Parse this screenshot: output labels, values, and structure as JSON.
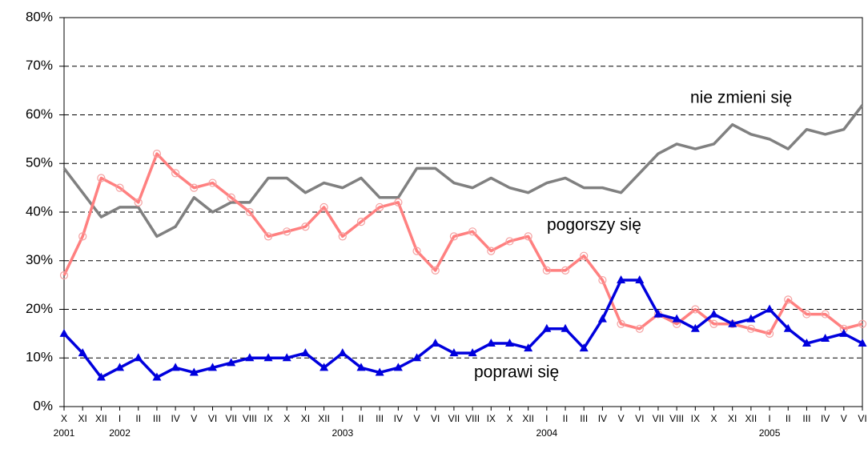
{
  "chart_data": {
    "type": "line",
    "categories": [
      "X",
      "XI",
      "XII",
      "I",
      "II",
      "III",
      "IV",
      "V",
      "VI",
      "VII",
      "VIII",
      "IX",
      "X",
      "XI",
      "XII",
      "I",
      "II",
      "III",
      "IV",
      "V",
      "VI",
      "VII",
      "VIII",
      "IX",
      "X",
      "XII",
      "I",
      "II",
      "III",
      "IV",
      "V",
      "VI",
      "VII",
      "VIII",
      "IX",
      "X",
      "XI",
      "XII",
      "I",
      "II",
      "III",
      "IV",
      "V",
      "VI"
    ],
    "year_labels": [
      "2001",
      null,
      null,
      "2002",
      null,
      null,
      null,
      null,
      null,
      null,
      null,
      null,
      null,
      null,
      null,
      "2003",
      null,
      null,
      null,
      null,
      null,
      null,
      null,
      null,
      null,
      null,
      "2004",
      null,
      null,
      null,
      null,
      null,
      null,
      null,
      null,
      null,
      null,
      null,
      "2005",
      null,
      null,
      null,
      null,
      null
    ],
    "series": [
      {
        "name": "nie zmieni się",
        "color": "#808080",
        "marker": "none",
        "values": [
          49,
          44,
          39,
          41,
          41,
          35,
          37,
          43,
          40,
          42,
          42,
          47,
          47,
          44,
          46,
          45,
          47,
          43,
          43,
          49,
          49,
          46,
          45,
          47,
          45,
          44,
          46,
          47,
          45,
          45,
          44,
          48,
          52,
          54,
          53,
          54,
          58,
          56,
          55,
          53,
          57,
          56,
          57,
          62
        ]
      },
      {
        "name": "pogorszy się",
        "color": "#ff8080",
        "marker": "circle",
        "values": [
          27,
          35,
          47,
          45,
          42,
          52,
          48,
          45,
          46,
          43,
          40,
          35,
          36,
          37,
          41,
          35,
          38,
          41,
          42,
          32,
          28,
          35,
          36,
          32,
          34,
          35,
          28,
          28,
          31,
          26,
          17,
          16,
          19,
          17,
          20,
          17,
          17,
          16,
          15,
          22,
          19,
          19,
          16,
          17
        ]
      },
      {
        "name": "poprawi się",
        "color": "#0000dd",
        "marker": "triangle",
        "values": [
          15,
          11,
          6,
          8,
          10,
          6,
          8,
          7,
          8,
          9,
          10,
          10,
          10,
          11,
          8,
          11,
          8,
          7,
          8,
          10,
          13,
          11,
          11,
          13,
          13,
          12,
          16,
          16,
          12,
          18,
          26,
          26,
          19,
          18,
          16,
          19,
          17,
          18,
          20,
          16,
          13,
          14,
          15,
          13
        ]
      }
    ],
    "ylim": [
      0,
      80
    ],
    "yticks": [
      {
        "value": 0,
        "label": "0%"
      },
      {
        "value": 10,
        "label": "10%"
      },
      {
        "value": 20,
        "label": "20%"
      },
      {
        "value": 30,
        "label": "30%"
      },
      {
        "value": 40,
        "label": "40%"
      },
      {
        "value": 50,
        "label": "50%"
      },
      {
        "value": 60,
        "label": "60%"
      },
      {
        "value": 70,
        "label": "70%"
      },
      {
        "value": 80,
        "label": "80%"
      }
    ],
    "grid": true
  }
}
